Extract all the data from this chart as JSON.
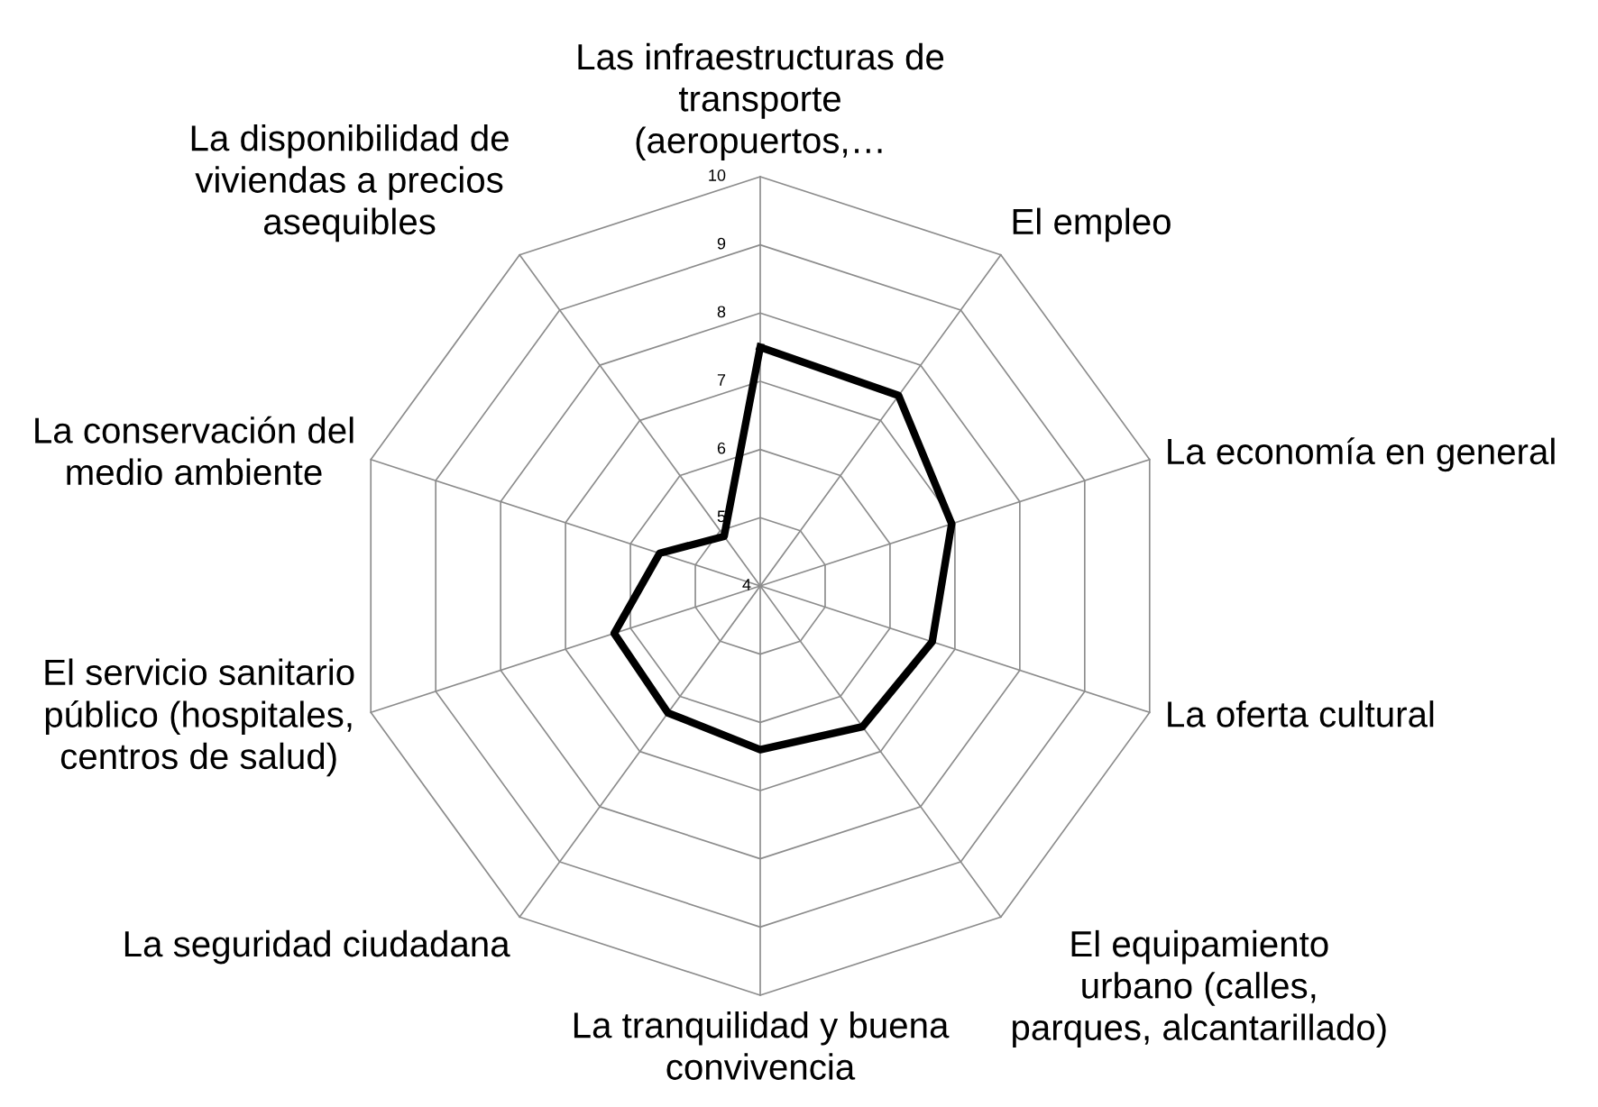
{
  "chart_data": {
    "type": "radar",
    "categories": [
      "Las infraestructuras de\ntransporte\n(aeropuertos,…",
      "El empleo",
      "La economía en general",
      "La oferta cultural",
      "El equipamiento\nurbano (calles,\nparques, alcantarillado)",
      "La tranquilidad y buena\nconvivencia",
      "La seguridad ciudadana",
      "El servicio sanitario\npúblico (hospitales,\ncentros de salud)",
      "La conservación del\nmedio ambiente",
      "La disponibilidad de\nviviendas a precios\nasequibles"
    ],
    "series": [
      {
        "color": "#000000",
        "values": [
          7.5,
          7.45,
          6.95,
          6.65,
          6.55,
          6.4,
          6.3,
          6.25,
          5.55,
          4.9
        ]
      }
    ],
    "ylim": [
      4,
      10
    ],
    "yticks": [
      4,
      5,
      6,
      7,
      8,
      9,
      10
    ],
    "grid": true,
    "marker": "none",
    "line_style": "solid"
  }
}
